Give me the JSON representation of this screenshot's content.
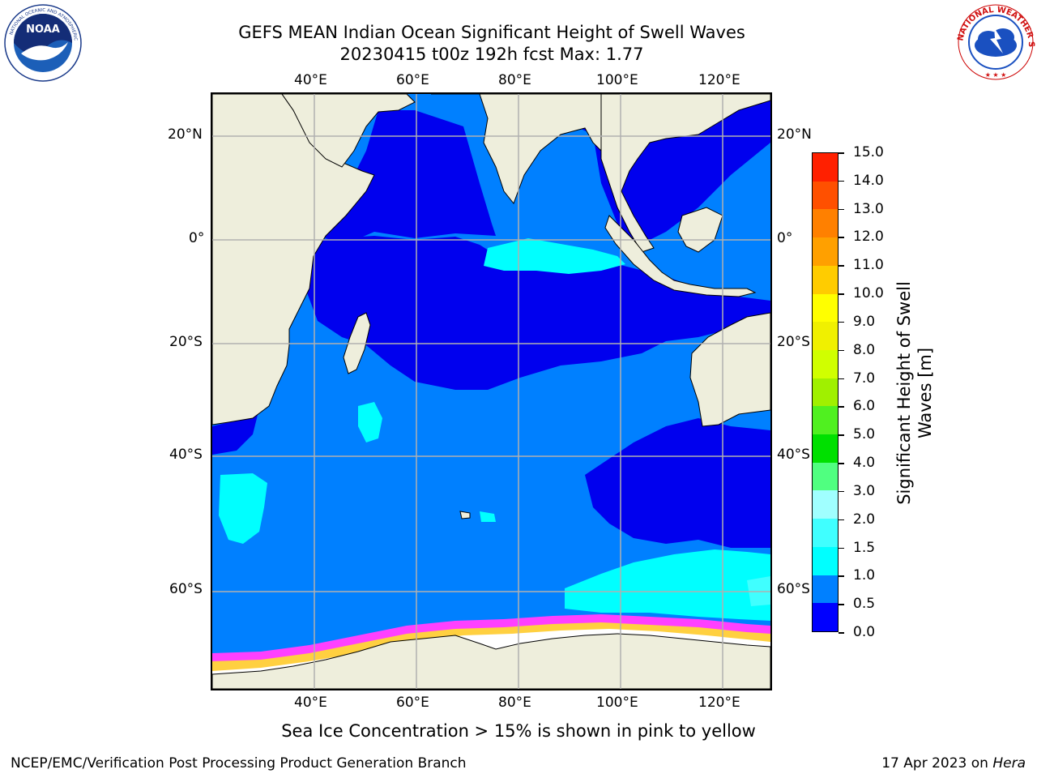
{
  "title_line1": "GEFS MEAN Indian Ocean Significant Height of Swell Waves",
  "title_line2": "20230415 t00z 192h fcst   Max: 1.77",
  "subtitle": "Sea Ice Concentration > 15% is shown in pink to yellow",
  "footer_left": "NCEP/EMC/Verification Post Processing Product Generation Branch",
  "footer_right_date": "17 Apr 2023 on",
  "footer_right_machine": "Hera",
  "logos": {
    "left": "NOAA",
    "right": "NATIONAL WEATHER SERVICE"
  },
  "map": {
    "lon_labels": [
      "40°E",
      "60°E",
      "80°E",
      "100°E",
      "120°E"
    ],
    "lat_labels": [
      "20°N",
      "0°",
      "20°S",
      "40°S",
      "60°S"
    ],
    "lon_values": [
      40,
      60,
      80,
      100,
      120
    ],
    "lat_values": [
      20,
      0,
      -20,
      -40,
      -60
    ]
  },
  "colorbar": {
    "label": "Significant Height of Swell Waves [m]",
    "ticks": [
      "0.0",
      "0.5",
      "1.0",
      "1.5",
      "2.0",
      "3.0",
      "4.0",
      "5.0",
      "6.0",
      "7.0",
      "8.0",
      "9.0",
      "10.0",
      "11.0",
      "12.0",
      "13.0",
      "14.0",
      "15.0"
    ],
    "colors": [
      "#0000ff",
      "#0080ff",
      "#00ffff",
      "#40ffff",
      "#a0ffff",
      "#50ff80",
      "#00e000",
      "#50f020",
      "#a0f000",
      "#d0ff00",
      "#f0f000",
      "#ffff00",
      "#ffcc00",
      "#ffa000",
      "#ff8000",
      "#ff5000",
      "#ff2000",
      "#ff0000"
    ]
  },
  "palette": {
    "land": "#eeeedc",
    "swell_0_05": "#0000ee",
    "swell_05_10": "#0080ff",
    "swell_10_15": "#00ffff",
    "swell_15_20": "#40ffff",
    "ice_edge": "#ff40ff",
    "ice_mid": "#ffd040",
    "ice_core": "#ffffff",
    "grid": "#b0b0b0"
  }
}
